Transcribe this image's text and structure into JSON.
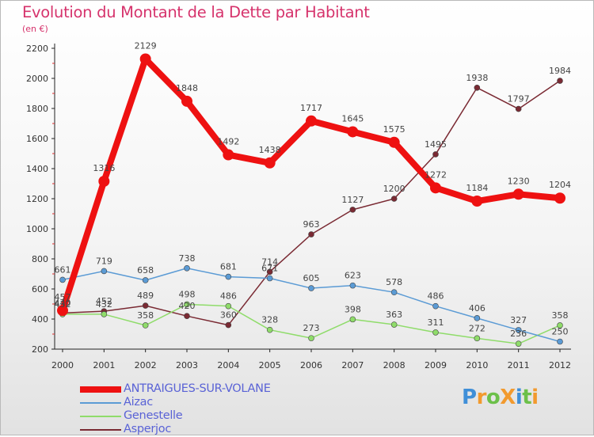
{
  "title": "Evolution du Montant de la Dette par Habitant",
  "subtitle": "(en €)",
  "logo": {
    "text": "ProXiti",
    "letters": [
      {
        "ch": "P",
        "color": "#3f8fd8"
      },
      {
        "ch": "r",
        "color": "#f29a2e"
      },
      {
        "ch": "o",
        "color": "#6cc04a"
      },
      {
        "ch": "X",
        "color": "#f29a2e"
      },
      {
        "ch": "i",
        "color": "#3f8fd8"
      },
      {
        "ch": "t",
        "color": "#6cc04a"
      },
      {
        "ch": "i",
        "color": "#f29a2e"
      }
    ]
  },
  "chart_data": {
    "type": "line",
    "title": "Evolution du Montant de la Dette par Habitant",
    "subtitle": "(en €)",
    "xlabel": "",
    "ylabel": "",
    "x": [
      "2000",
      "2001",
      "2002",
      "2003",
      "2004",
      "2005",
      "2006",
      "2007",
      "2008",
      "2009",
      "2010",
      "2011",
      "2012"
    ],
    "ylim": [
      200,
      2200
    ],
    "yticks": [
      200,
      400,
      600,
      800,
      1000,
      1200,
      1400,
      1600,
      1800,
      2000,
      2200
    ],
    "legend_position": "bottom-left",
    "series": [
      {
        "name": "ANTRAIGUES-SUR-VOLANE",
        "color": "#ee1111",
        "values": [
          457,
          1316,
          2129,
          1848,
          1492,
          1438,
          1717,
          1645,
          1575,
          1272,
          1184,
          1230,
          1204
        ],
        "labels": [
          "457",
          "1316",
          "2129",
          "1848",
          "1492",
          "1438",
          "1717",
          "1645",
          "1575",
          "1272",
          "1184",
          "1230",
          "1204"
        ]
      },
      {
        "name": "Aizac",
        "color": "#5b9bd5",
        "values": [
          661,
          719,
          658,
          738,
          681,
          671,
          605,
          623,
          578,
          486,
          406,
          327,
          250
        ],
        "labels": [
          "661",
          "719",
          "658",
          "738",
          "681",
          "671",
          "605",
          "623",
          "578",
          "486",
          "406",
          "327",
          "250"
        ]
      },
      {
        "name": "Genestelle",
        "color": "#8fdc6a",
        "values": [
          432,
          432,
          358,
          498,
          486,
          328,
          273,
          398,
          363,
          311,
          272,
          236,
          358
        ],
        "labels": [
          "432",
          "432",
          "358",
          "498",
          "486",
          "328",
          "273",
          "398",
          "363",
          "311",
          "272",
          "236",
          "358"
        ]
      },
      {
        "name": "Asperjoc",
        "color": "#7a2a33",
        "values": [
          440,
          452,
          489,
          420,
          360,
          714,
          963,
          1127,
          1200,
          1495,
          1938,
          1797,
          1984
        ],
        "labels": [
          "440",
          "452",
          "489",
          "420",
          "360",
          "714",
          "963",
          "1127",
          "1200",
          "1495",
          "1938",
          "1797",
          "1984"
        ]
      }
    ]
  }
}
